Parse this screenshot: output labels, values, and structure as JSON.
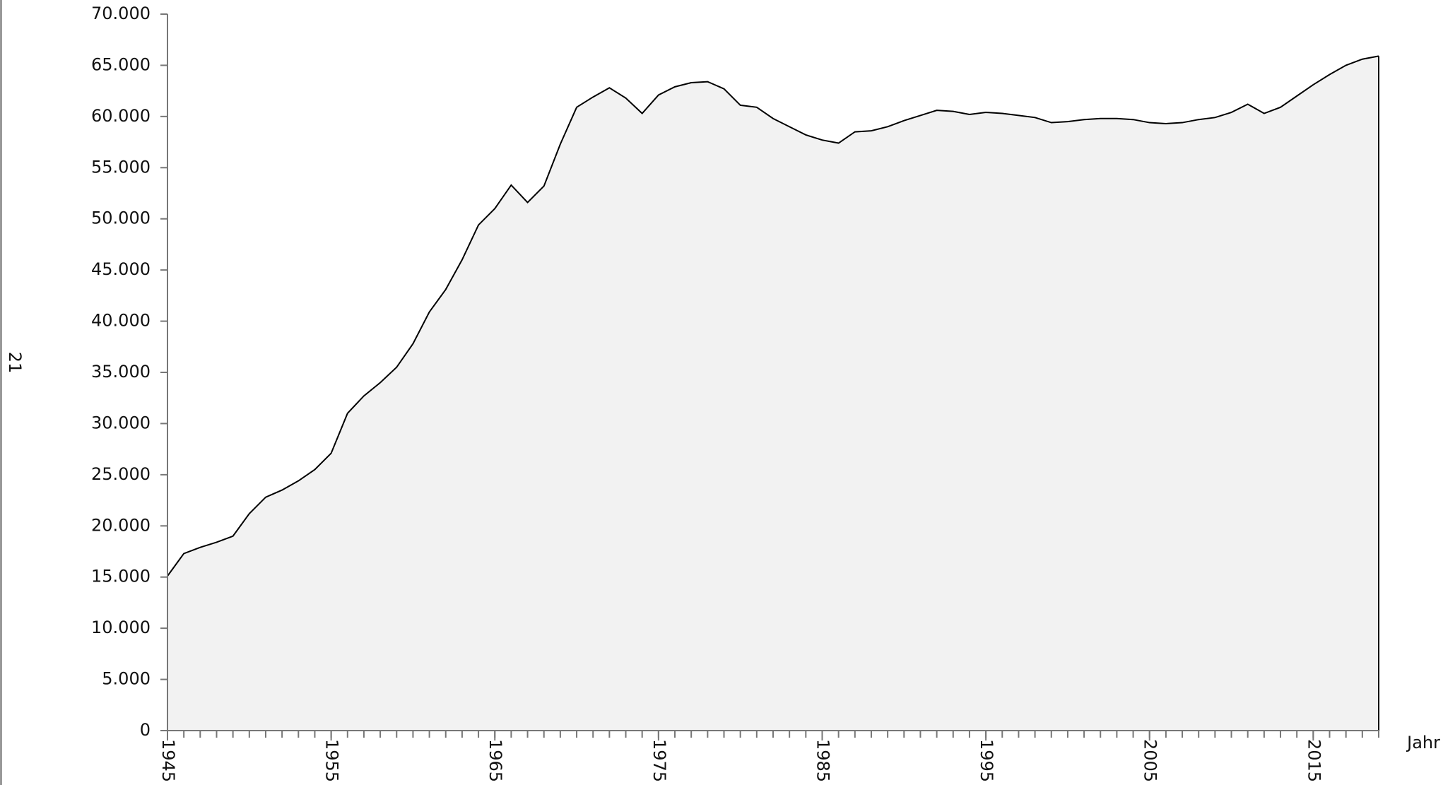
{
  "page_number": "21",
  "chart_data": {
    "type": "area",
    "x_label": "Jahr",
    "x": [
      1945,
      1946,
      1947,
      1948,
      1949,
      1950,
      1951,
      1952,
      1953,
      1954,
      1955,
      1956,
      1957,
      1958,
      1959,
      1960,
      1961,
      1962,
      1963,
      1964,
      1965,
      1966,
      1967,
      1968,
      1969,
      1970,
      1971,
      1972,
      1973,
      1974,
      1975,
      1976,
      1977,
      1978,
      1979,
      1980,
      1981,
      1982,
      1983,
      1984,
      1985,
      1986,
      1987,
      1988,
      1989,
      1990,
      1991,
      1992,
      1993,
      1994,
      1995,
      1996,
      1997,
      1998,
      1999,
      2000,
      2001,
      2002,
      2003,
      2004,
      2005,
      2006,
      2007,
      2008,
      2009,
      2010,
      2011,
      2012,
      2013,
      2014,
      2015,
      2016,
      2017,
      2018,
      2019
    ],
    "values": [
      15100,
      17300,
      17900,
      18400,
      19000,
      21200,
      22800,
      23500,
      24400,
      25500,
      27100,
      31000,
      32700,
      34000,
      35500,
      37800,
      40900,
      43100,
      46000,
      49400,
      51000,
      53300,
      51600,
      53200,
      57300,
      60900,
      61900,
      62800,
      61800,
      60300,
      62100,
      62900,
      63300,
      63400,
      62700,
      61100,
      60900,
      59800,
      59000,
      58200,
      57700,
      57400,
      58500,
      58600,
      59000,
      59600,
      60100,
      60600,
      60500,
      60200,
      60400,
      60300,
      60100,
      59900,
      59400,
      59500,
      59700,
      59800,
      59800,
      59700,
      59400,
      59300,
      59400,
      59700,
      59900,
      60400,
      61200,
      60300,
      60900,
      62000,
      63100,
      64100,
      65000,
      65600,
      65900
    ],
    "color": "#000000",
    "fill": "#f2f2f2",
    "xlim": [
      1945,
      2019
    ],
    "xticks": [
      1945,
      1955,
      1965,
      1975,
      1985,
      1995,
      2005,
      2015
    ],
    "ylim": [
      0,
      70000
    ],
    "yticks": [
      0,
      {
        "value": 5000,
        "label": "5.000"
      },
      {
        "value": 10000,
        "label": "10.000"
      },
      {
        "value": 15000,
        "label": "15.000"
      },
      {
        "value": 20000,
        "label": "20.000"
      },
      {
        "value": 25000,
        "label": "25.000"
      },
      {
        "value": 30000,
        "label": "30.000"
      },
      {
        "value": 35000,
        "label": "35.000"
      },
      {
        "value": 40000,
        "label": "40.000"
      },
      {
        "value": 45000,
        "label": "45.000"
      },
      {
        "value": 50000,
        "label": "50.000"
      },
      {
        "value": 55000,
        "label": "55.000"
      },
      {
        "value": 60000,
        "label": "60.000"
      },
      {
        "value": 65000,
        "label": "65.000"
      },
      {
        "value": 70000,
        "label": "70.000"
      }
    ],
    "grid": false
  }
}
